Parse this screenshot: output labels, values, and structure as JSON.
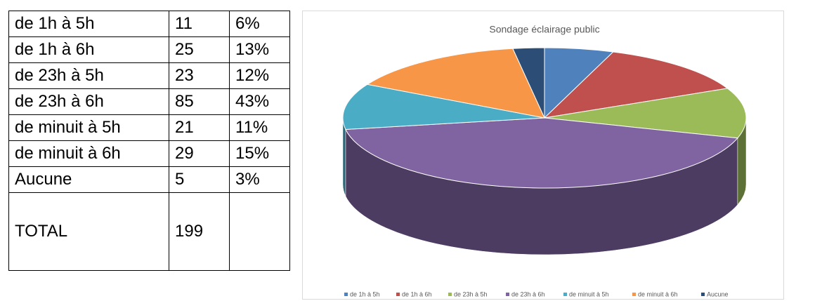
{
  "table": {
    "rows": [
      [
        "de 1h à 5h",
        "11",
        "6%"
      ],
      [
        "de 1h à 6h",
        "25",
        "13%"
      ],
      [
        "de 23h à 5h",
        "23",
        "12%"
      ],
      [
        "de 23h à 6h",
        "85",
        "43%"
      ],
      [
        "de minuit à 5h",
        "21",
        "11%"
      ],
      [
        "de minuit à 6h",
        "29",
        "15%"
      ],
      [
        "Aucune",
        "5",
        "3%"
      ],
      [
        "TOTAL",
        "199",
        ""
      ]
    ]
  },
  "chart_data": {
    "type": "pie",
    "title": "Sondage éclairage public",
    "categories": [
      "de 1h à 5h",
      "de 1h à 6h",
      "de 23h à 5h",
      "de 23h à 6h",
      "de minuit à 5h",
      "de minuit à 6h",
      "Aucune"
    ],
    "values": [
      11,
      25,
      23,
      85,
      21,
      29,
      5
    ],
    "colors": [
      "#4f81bd",
      "#c0504d",
      "#9bbb59",
      "#8064a2",
      "#4bacc6",
      "#f79646",
      "#2c4d75"
    ],
    "legend": "bottom"
  }
}
